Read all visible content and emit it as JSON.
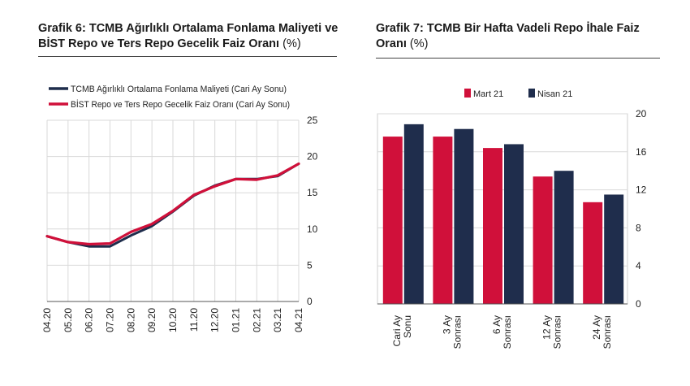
{
  "chart6": {
    "title_main": "Grafik 6:  TCMB Ağırlıklı Ortalama Fonlama Maliyeti ve BİST Repo ve Ters Repo Gecelik Faiz Oranı",
    "title_unit": "(%)"
  },
  "chart7": {
    "title_main": "Grafik 7: TCMB Bir Hafta Vadeli Repo İhale Faiz Oranı",
    "title_unit": "(%)"
  },
  "colors": {
    "navy": "#1f2d4c",
    "red": "#d0103a",
    "grid": "#d9d9d9"
  },
  "chart_data": [
    {
      "type": "line",
      "x": [
        "04.20",
        "05.20",
        "06.20",
        "07.20",
        "08.20",
        "09.20",
        "10.20",
        "11.20",
        "12.20",
        "01.21",
        "02.21",
        "03.21",
        "04.21"
      ],
      "series": [
        {
          "name": "TCMB Ağırlıklı Ortalama Fonlama Maliyeti (Cari Ay Sonu)",
          "values": [
            9.0,
            8.2,
            7.6,
            7.6,
            9.1,
            10.4,
            12.4,
            14.6,
            16.0,
            16.9,
            16.9,
            17.3,
            19.0
          ]
        },
        {
          "name": "BİST Repo ve Ters Repo Gecelik Faiz Oranı (Cari Ay Sonu)",
          "values": [
            9.0,
            8.2,
            7.9,
            8.0,
            9.6,
            10.7,
            12.5,
            14.7,
            15.9,
            16.9,
            16.8,
            17.4,
            19.0
          ]
        }
      ],
      "ylim": [
        0,
        25
      ],
      "yticks": [
        0,
        5,
        10,
        15,
        20,
        25
      ],
      "grid": true,
      "legend": "top-left"
    },
    {
      "type": "bar",
      "categories": [
        "Cari Ay Sonu",
        "3 Ay Sonrası",
        "6 Ay Sonrası",
        "12 Ay Sonrası",
        "24 Ay Sonrası"
      ],
      "category_lines": [
        [
          "Cari Ay",
          "Sonu"
        ],
        [
          "3 Ay",
          "Sonrası"
        ],
        [
          "6 Ay",
          "Sonrası"
        ],
        [
          "12 Ay",
          "Sonrası"
        ],
        [
          "24 Ay",
          "Sonrası"
        ]
      ],
      "series": [
        {
          "name": "Mart 21",
          "values": [
            17.6,
            17.6,
            16.4,
            13.4,
            10.7
          ]
        },
        {
          "name": "Nisan 21",
          "values": [
            18.9,
            18.4,
            16.8,
            14.0,
            11.5
          ]
        }
      ],
      "ylim": [
        0,
        20
      ],
      "yticks": [
        0,
        4,
        8,
        12,
        16,
        20
      ],
      "grid": true,
      "legend": "top"
    }
  ]
}
